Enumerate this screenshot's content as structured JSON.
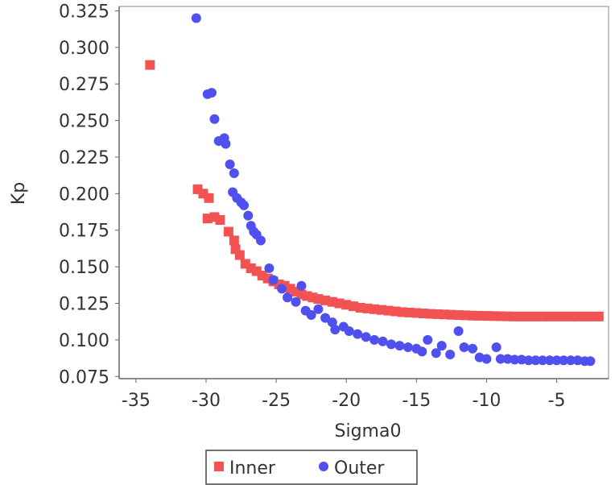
{
  "chart_data": {
    "type": "scatter",
    "xlabel": "Sigma0",
    "ylabel": "Kp",
    "xlim": [
      -36.2,
      -1.3
    ],
    "ylim": [
      0.0735,
      0.328
    ],
    "x_ticks": [
      -35,
      -30,
      -25,
      -20,
      -15,
      -10,
      -5
    ],
    "y_ticks": [
      0.075,
      0.1,
      0.125,
      0.15,
      0.175,
      0.2,
      0.225,
      0.25,
      0.275,
      0.3,
      0.325
    ],
    "grid": true,
    "legend_position": "bottom",
    "series": [
      {
        "name": "Inner",
        "marker": "square",
        "color": "#f25252",
        "points": [
          [
            -34.0,
            0.288
          ],
          [
            -30.6,
            0.203
          ],
          [
            -30.2,
            0.2
          ],
          [
            -29.8,
            0.197
          ],
          [
            -29.9,
            0.183
          ],
          [
            -29.4,
            0.184
          ],
          [
            -29.0,
            0.182
          ],
          [
            -28.4,
            0.174
          ],
          [
            -28.0,
            0.168
          ],
          [
            -27.9,
            0.162
          ],
          [
            -27.6,
            0.158
          ],
          [
            -27.2,
            0.152
          ],
          [
            -26.8,
            0.149
          ],
          [
            -26.4,
            0.147
          ],
          [
            -26.0,
            0.144
          ],
          [
            -25.6,
            0.142
          ],
          [
            -25.2,
            0.14
          ],
          [
            -24.8,
            0.138
          ],
          [
            -24.4,
            0.137
          ],
          [
            -24.0,
            0.135
          ],
          [
            -23.6,
            0.133
          ],
          [
            -23.2,
            0.131
          ],
          [
            -22.8,
            0.13
          ],
          [
            -22.4,
            0.129
          ],
          [
            -22.0,
            0.128
          ],
          [
            -21.5,
            0.127
          ],
          [
            -21.0,
            0.126
          ],
          [
            -20.5,
            0.125
          ],
          [
            -20.0,
            0.124
          ],
          [
            -19.5,
            0.123
          ],
          [
            -19.0,
            0.122
          ],
          [
            -18.5,
            0.1215
          ],
          [
            -18.0,
            0.121
          ],
          [
            -17.5,
            0.1205
          ],
          [
            -17.0,
            0.12
          ],
          [
            -16.5,
            0.1195
          ],
          [
            -16.0,
            0.119
          ],
          [
            -15.5,
            0.1187
          ],
          [
            -15.0,
            0.1184
          ],
          [
            -14.5,
            0.1181
          ],
          [
            -14.0,
            0.1178
          ],
          [
            -13.5,
            0.1176
          ],
          [
            -13.0,
            0.1174
          ],
          [
            -12.5,
            0.1172
          ],
          [
            -12.0,
            0.117
          ],
          [
            -11.5,
            0.1168
          ],
          [
            -11.0,
            0.1166
          ],
          [
            -10.5,
            0.1165
          ],
          [
            -10.0,
            0.1164
          ],
          [
            -9.5,
            0.1163
          ],
          [
            -9.0,
            0.1162
          ],
          [
            -8.5,
            0.1161
          ],
          [
            -8.0,
            0.116
          ],
          [
            -7.5,
            0.116
          ],
          [
            -7.0,
            0.116
          ],
          [
            -6.5,
            0.116
          ],
          [
            -6.0,
            0.116
          ],
          [
            -5.5,
            0.116
          ],
          [
            -5.0,
            0.116
          ],
          [
            -4.5,
            0.116
          ],
          [
            -4.0,
            0.116
          ],
          [
            -3.5,
            0.116
          ],
          [
            -3.0,
            0.116
          ],
          [
            -2.5,
            0.116
          ],
          [
            -2.0,
            0.116
          ]
        ]
      },
      {
        "name": "Outer",
        "marker": "circle",
        "color": "#5050ee",
        "points": [
          [
            -30.7,
            0.32
          ],
          [
            -29.9,
            0.268
          ],
          [
            -29.6,
            0.269
          ],
          [
            -29.4,
            0.251
          ],
          [
            -29.1,
            0.236
          ],
          [
            -28.7,
            0.238
          ],
          [
            -28.6,
            0.234
          ],
          [
            -28.3,
            0.22
          ],
          [
            -28.0,
            0.214
          ],
          [
            -28.1,
            0.201
          ],
          [
            -27.8,
            0.197
          ],
          [
            -27.5,
            0.194
          ],
          [
            -27.3,
            0.192
          ],
          [
            -27.0,
            0.185
          ],
          [
            -26.8,
            0.178
          ],
          [
            -26.6,
            0.174
          ],
          [
            -26.4,
            0.172
          ],
          [
            -26.1,
            0.168
          ],
          [
            -25.5,
            0.149
          ],
          [
            -25.2,
            0.141
          ],
          [
            -24.6,
            0.135
          ],
          [
            -24.2,
            0.129
          ],
          [
            -23.6,
            0.126
          ],
          [
            -23.2,
            0.137
          ],
          [
            -22.9,
            0.12
          ],
          [
            -22.5,
            0.117
          ],
          [
            -22.0,
            0.121
          ],
          [
            -21.5,
            0.115
          ],
          [
            -21.0,
            0.112
          ],
          [
            -20.8,
            0.107
          ],
          [
            -20.2,
            0.109
          ],
          [
            -19.8,
            0.106
          ],
          [
            -19.2,
            0.104
          ],
          [
            -18.6,
            0.102
          ],
          [
            -18.0,
            0.1
          ],
          [
            -17.4,
            0.099
          ],
          [
            -16.8,
            0.097
          ],
          [
            -16.2,
            0.096
          ],
          [
            -15.6,
            0.095
          ],
          [
            -15.0,
            0.094
          ],
          [
            -14.6,
            0.092
          ],
          [
            -14.2,
            0.1
          ],
          [
            -13.6,
            0.091
          ],
          [
            -13.2,
            0.096
          ],
          [
            -12.6,
            0.09
          ],
          [
            -12.0,
            0.106
          ],
          [
            -11.6,
            0.095
          ],
          [
            -11.0,
            0.094
          ],
          [
            -10.5,
            0.088
          ],
          [
            -10.0,
            0.087
          ],
          [
            -9.3,
            0.095
          ],
          [
            -9.0,
            0.087
          ],
          [
            -8.5,
            0.087
          ],
          [
            -8.0,
            0.0865
          ],
          [
            -7.5,
            0.0865
          ],
          [
            -7.0,
            0.086
          ],
          [
            -6.5,
            0.086
          ],
          [
            -6.0,
            0.086
          ],
          [
            -5.5,
            0.086
          ],
          [
            -5.0,
            0.086
          ],
          [
            -4.5,
            0.086
          ],
          [
            -4.0,
            0.086
          ],
          [
            -3.5,
            0.086
          ],
          [
            -3.0,
            0.0855
          ],
          [
            -2.6,
            0.0855
          ]
        ]
      }
    ]
  }
}
